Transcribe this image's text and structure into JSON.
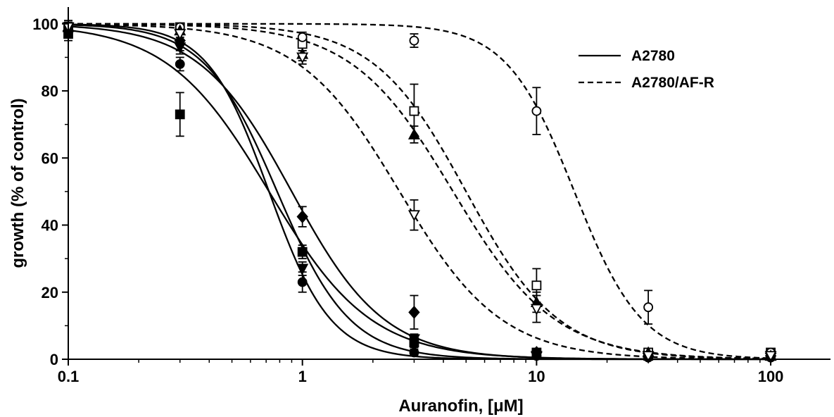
{
  "chart_data": {
    "type": "line",
    "xlabel": "Auranofin, [μM]",
    "ylabel": "growth (% of control)",
    "xscale": "log",
    "xlim": [
      0.1,
      180
    ],
    "ylim": [
      0,
      105
    ],
    "xticks": [
      {
        "value": 0.1,
        "label": "0.1"
      },
      {
        "value": 1,
        "label": "1"
      },
      {
        "value": 10,
        "label": "10"
      },
      {
        "value": 100,
        "label": "100"
      }
    ],
    "yticks": [
      {
        "value": 0,
        "label": "0"
      },
      {
        "value": 20,
        "label": "20"
      },
      {
        "value": 40,
        "label": "40"
      },
      {
        "value": 60,
        "label": "60"
      },
      {
        "value": 80,
        "label": "80"
      },
      {
        "value": 100,
        "label": "100"
      }
    ],
    "grid": false,
    "legend_position": "top-right",
    "legend": [
      {
        "label": "A2780",
        "style": "solid"
      },
      {
        "label": "A2780/AF-R",
        "style": "dashed"
      }
    ],
    "series": [
      {
        "group": "A2780",
        "style": "solid",
        "marker": "square-filled",
        "ic50": 0.72,
        "hill": 2.0,
        "points": [
          {
            "x": 0.1,
            "y": 97,
            "err": 2
          },
          {
            "x": 0.3,
            "y": 73,
            "err": 6.5
          },
          {
            "x": 1,
            "y": 32,
            "err": 2
          },
          {
            "x": 3,
            "y": 5,
            "err": 1.5
          },
          {
            "x": 10,
            "y": 2,
            "err": 1
          },
          {
            "x": 30,
            "y": 1,
            "err": 0.5
          },
          {
            "x": 100,
            "y": 1,
            "err": 0.5
          }
        ]
      },
      {
        "group": "A2780",
        "style": "solid",
        "marker": "circle-filled",
        "ic50": 0.72,
        "hill": 3.3,
        "points": [
          {
            "x": 0.1,
            "y": 99,
            "err": 2
          },
          {
            "x": 0.3,
            "y": 88,
            "err": 2
          },
          {
            "x": 1,
            "y": 23,
            "err": 3
          },
          {
            "x": 3,
            "y": 2,
            "err": 1
          },
          {
            "x": 10,
            "y": 1,
            "err": 0.5
          },
          {
            "x": 30,
            "y": 0.5,
            "err": 0.5
          },
          {
            "x": 100,
            "y": 0.5,
            "err": 0.5
          }
        ]
      },
      {
        "group": "A2780",
        "style": "solid",
        "marker": "triangle-down-filled",
        "ic50": 0.78,
        "hill": 2.8,
        "points": [
          {
            "x": 0.1,
            "y": 99,
            "err": 1.5
          },
          {
            "x": 0.3,
            "y": 93,
            "err": 2
          },
          {
            "x": 1,
            "y": 27,
            "err": 2
          },
          {
            "x": 3,
            "y": 6,
            "err": 1.5
          },
          {
            "x": 10,
            "y": 1,
            "err": 0.5
          },
          {
            "x": 30,
            "y": 0.5,
            "err": 0.5
          },
          {
            "x": 100,
            "y": 0.5,
            "err": 0.5
          }
        ]
      },
      {
        "group": "A2780",
        "style": "solid",
        "marker": "diamond-filled",
        "ic50": 0.9,
        "hill": 2.2,
        "points": [
          {
            "x": 0.1,
            "y": 98,
            "err": 2
          },
          {
            "x": 0.3,
            "y": 95,
            "err": 3
          },
          {
            "x": 1,
            "y": 42.5,
            "err": 3
          },
          {
            "x": 3,
            "y": 14,
            "err": 5
          },
          {
            "x": 10,
            "y": 2,
            "err": 1
          },
          {
            "x": 30,
            "y": 1,
            "err": 0.5
          },
          {
            "x": 100,
            "y": 1,
            "err": 0.5
          }
        ]
      },
      {
        "group": "A2780/AF-R",
        "style": "dashed",
        "marker": "square-open",
        "ic50": 5.0,
        "hill": 2.2,
        "points": [
          {
            "x": 0.1,
            "y": 99,
            "err": 1
          },
          {
            "x": 0.3,
            "y": 99,
            "err": 1
          },
          {
            "x": 1,
            "y": 94,
            "err": 2
          },
          {
            "x": 3,
            "y": 74,
            "err": 8
          },
          {
            "x": 10,
            "y": 22,
            "err": 5
          },
          {
            "x": 30,
            "y": 2,
            "err": 1
          },
          {
            "x": 100,
            "y": 2,
            "err": 1
          }
        ]
      },
      {
        "group": "A2780/AF-R",
        "style": "dashed",
        "marker": "circle-open",
        "ic50": 14.5,
        "hill": 3.0,
        "points": [
          {
            "x": 0.1,
            "y": 99,
            "err": 1
          },
          {
            "x": 0.3,
            "y": 99,
            "err": 1
          },
          {
            "x": 1,
            "y": 96,
            "err": 1.5
          },
          {
            "x": 3,
            "y": 95,
            "err": 2
          },
          {
            "x": 10,
            "y": 74,
            "err": 7
          },
          {
            "x": 30,
            "y": 15.5,
            "err": 5
          },
          {
            "x": 100,
            "y": 2,
            "err": 1
          }
        ]
      },
      {
        "group": "A2780/AF-R",
        "style": "dashed",
        "marker": "triangle-up-filled",
        "ic50": 4.4,
        "hill": 2.0,
        "points": [
          {
            "x": 0.1,
            "y": 99,
            "err": 1
          },
          {
            "x": 0.3,
            "y": 98,
            "err": 1
          },
          {
            "x": 1,
            "y": 91,
            "err": 2
          },
          {
            "x": 3,
            "y": 67,
            "err": 2.5
          },
          {
            "x": 10,
            "y": 17,
            "err": 3
          },
          {
            "x": 30,
            "y": 2,
            "err": 1
          },
          {
            "x": 100,
            "y": 1,
            "err": 0.5
          }
        ]
      },
      {
        "group": "A2780/AF-R",
        "style": "dashed",
        "marker": "triangle-down-open",
        "ic50": 2.6,
        "hill": 2.0,
        "points": [
          {
            "x": 0.1,
            "y": 99,
            "err": 1
          },
          {
            "x": 0.3,
            "y": 97,
            "err": 1
          },
          {
            "x": 1,
            "y": 90,
            "err": 2
          },
          {
            "x": 3,
            "y": 43,
            "err": 4.5
          },
          {
            "x": 10,
            "y": 15,
            "err": 4
          },
          {
            "x": 30,
            "y": 1,
            "err": 0.5
          },
          {
            "x": 100,
            "y": 1,
            "err": 0.5
          }
        ]
      }
    ]
  }
}
